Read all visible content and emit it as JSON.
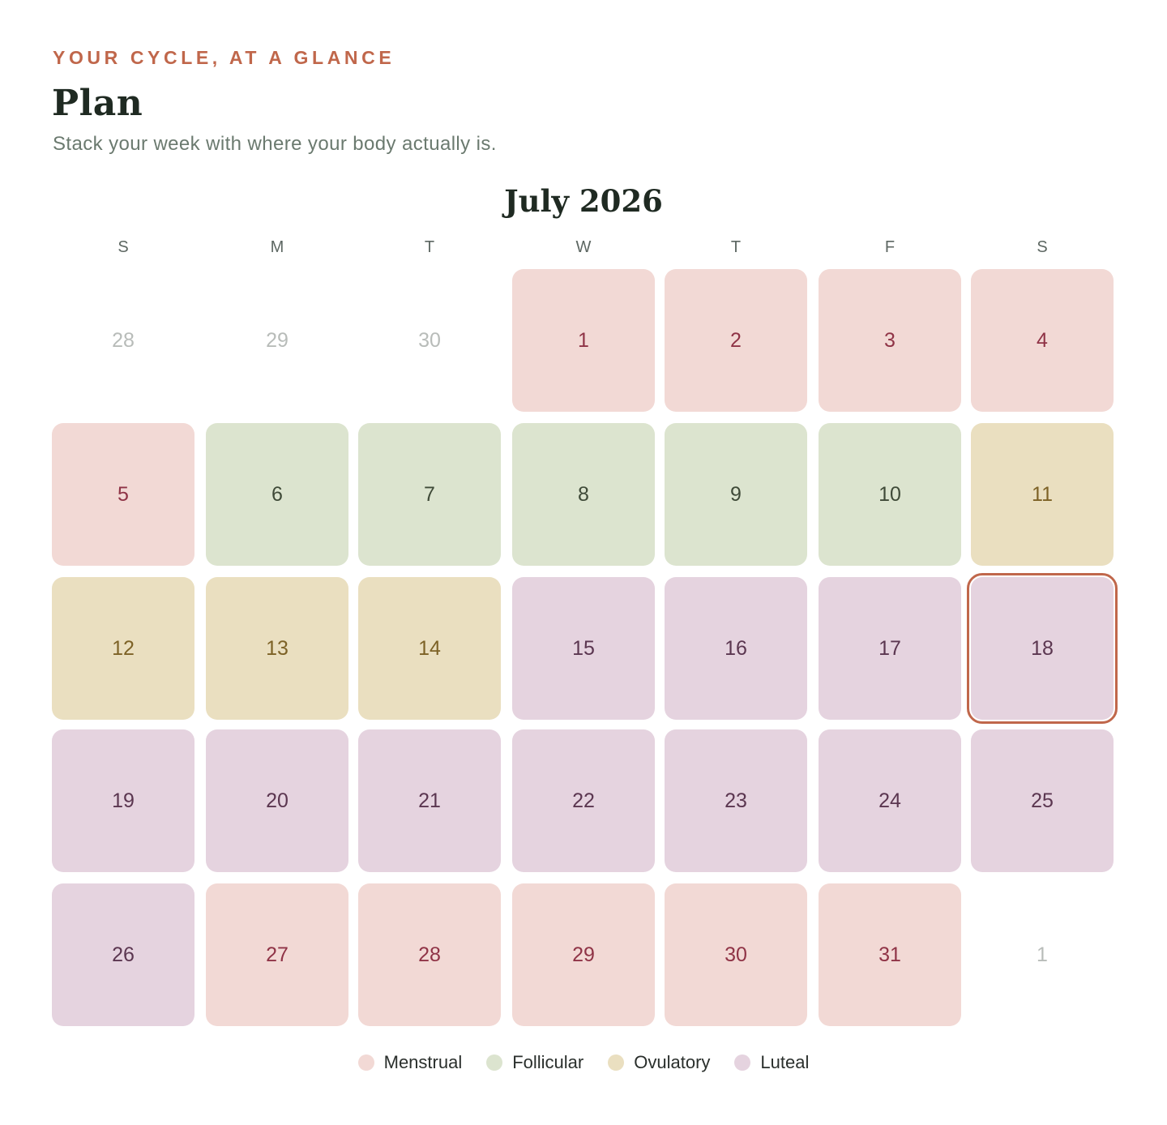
{
  "header": {
    "eyebrow": "YOUR CYCLE, AT A GLANCE",
    "title": "Plan",
    "subtitle": "Stack your week with where your body actually is."
  },
  "calendar": {
    "month_label": "July 2026",
    "weekdays": [
      "S",
      "M",
      "T",
      "W",
      "T",
      "F",
      "S"
    ],
    "weeks": [
      [
        {
          "label": "28",
          "phase": "other"
        },
        {
          "label": "29",
          "phase": "other"
        },
        {
          "label": "30",
          "phase": "other"
        },
        {
          "label": "1",
          "phase": "menstrual"
        },
        {
          "label": "2",
          "phase": "menstrual"
        },
        {
          "label": "3",
          "phase": "menstrual"
        },
        {
          "label": "4",
          "phase": "menstrual"
        }
      ],
      [
        {
          "label": "5",
          "phase": "menstrual"
        },
        {
          "label": "6",
          "phase": "follicular"
        },
        {
          "label": "7",
          "phase": "follicular"
        },
        {
          "label": "8",
          "phase": "follicular"
        },
        {
          "label": "9",
          "phase": "follicular"
        },
        {
          "label": "10",
          "phase": "follicular"
        },
        {
          "label": "11",
          "phase": "ovulatory"
        }
      ],
      [
        {
          "label": "12",
          "phase": "ovulatory"
        },
        {
          "label": "13",
          "phase": "ovulatory"
        },
        {
          "label": "14",
          "phase": "ovulatory"
        },
        {
          "label": "15",
          "phase": "luteal"
        },
        {
          "label": "16",
          "phase": "luteal"
        },
        {
          "label": "17",
          "phase": "luteal"
        },
        {
          "label": "18",
          "phase": "luteal",
          "today": true
        }
      ],
      [
        {
          "label": "19",
          "phase": "luteal"
        },
        {
          "label": "20",
          "phase": "luteal"
        },
        {
          "label": "21",
          "phase": "luteal"
        },
        {
          "label": "22",
          "phase": "luteal"
        },
        {
          "label": "23",
          "phase": "luteal"
        },
        {
          "label": "24",
          "phase": "luteal"
        },
        {
          "label": "25",
          "phase": "luteal"
        }
      ],
      [
        {
          "label": "26",
          "phase": "luteal"
        },
        {
          "label": "27",
          "phase": "menstrual"
        },
        {
          "label": "28",
          "phase": "menstrual"
        },
        {
          "label": "29",
          "phase": "menstrual"
        },
        {
          "label": "30",
          "phase": "menstrual"
        },
        {
          "label": "31",
          "phase": "menstrual"
        },
        {
          "label": "1",
          "phase": "other"
        }
      ]
    ]
  },
  "legend": [
    {
      "label": "Menstrual",
      "color": "#f2d9d5"
    },
    {
      "label": "Follicular",
      "color": "#dce4cf"
    },
    {
      "label": "Ovulatory",
      "color": "#eadfc0"
    },
    {
      "label": "Luteal",
      "color": "#e5d3df"
    }
  ],
  "colors": {
    "accent": "#c0674b",
    "menstrual_text": "#8f3346",
    "follicular_text": "#3f4a38",
    "ovulatory_text": "#7d6226",
    "luteal_text": "#5b3650"
  }
}
